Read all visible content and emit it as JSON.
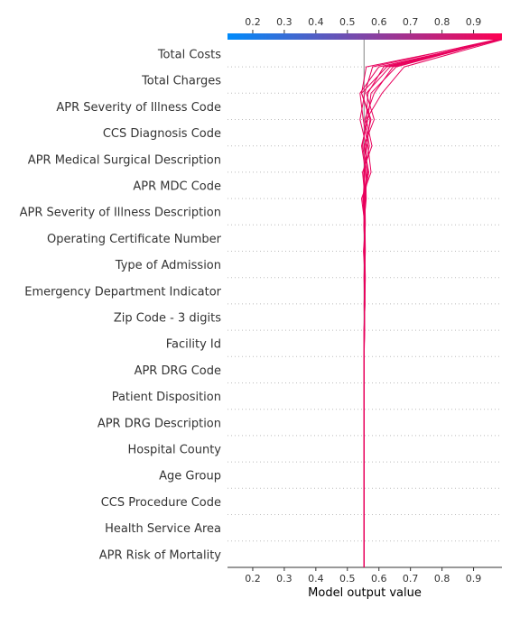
{
  "chart_data": {
    "type": "line",
    "title": "",
    "xlabel": "Model output value",
    "ylabel": "",
    "xlim": [
      0.12,
      0.99
    ],
    "x_ticks": [
      "0.2",
      "0.3",
      "0.4",
      "0.5",
      "0.6",
      "0.7",
      "0.8",
      "0.9"
    ],
    "base_value": 0.553,
    "colorbar": {
      "from": "#008bfb",
      "to": "#ff0052"
    },
    "line_color": "#e8005c",
    "grid": "dotted horizontal",
    "features": [
      "Total Costs",
      "Total Charges",
      "APR Severity of Illness Code",
      "CCS Diagnosis Code",
      "APR Medical Surgical Description",
      "APR MDC Code",
      "APR Severity of Illness Description",
      "Operating Certificate Number",
      "Type of Admission",
      "Emergency Department Indicator",
      "Zip Code - 3 digits",
      "Facility Id",
      "APR DRG Code",
      "Patient Disposition",
      "APR DRG Description",
      "Hospital County",
      "Age Group",
      "CCS Procedure Code",
      "Health Service Area",
      "APR Risk of Mortality"
    ],
    "series": [
      {
        "values": [
          0.985,
          0.625,
          0.545,
          0.572,
          0.562,
          0.552,
          0.555,
          0.553,
          0.555,
          0.557,
          0.555,
          0.554,
          0.553,
          0.553,
          0.553,
          0.553,
          0.553,
          0.553,
          0.553,
          0.553,
          0.553
        ]
      },
      {
        "values": [
          0.975,
          0.635,
          0.56,
          0.585,
          0.552,
          0.568,
          0.553,
          0.556,
          0.554,
          0.556,
          0.556,
          0.553,
          0.553,
          0.553,
          0.553,
          0.553,
          0.553,
          0.553,
          0.553,
          0.553,
          0.553
        ]
      },
      {
        "values": [
          0.98,
          0.655,
          0.575,
          0.565,
          0.545,
          0.558,
          0.56,
          0.552,
          0.556,
          0.553,
          0.554,
          0.555,
          0.553,
          0.553,
          0.553,
          0.553,
          0.553,
          0.553,
          0.553,
          0.553,
          0.553
        ]
      },
      {
        "values": [
          0.99,
          0.68,
          0.61,
          0.56,
          0.578,
          0.548,
          0.556,
          0.557,
          0.551,
          0.556,
          0.555,
          0.553,
          0.553,
          0.553,
          0.553,
          0.553,
          0.553,
          0.553,
          0.553,
          0.553,
          0.553
        ]
      },
      {
        "values": [
          0.988,
          0.6,
          0.54,
          0.55,
          0.565,
          0.575,
          0.545,
          0.556,
          0.557,
          0.554,
          0.555,
          0.554,
          0.553,
          0.553,
          0.553,
          0.553,
          0.553,
          0.553,
          0.553,
          0.553,
          0.553
        ]
      },
      {
        "values": [
          0.97,
          0.58,
          0.555,
          0.54,
          0.56,
          0.555,
          0.55,
          0.553,
          0.555,
          0.556,
          0.553,
          0.554,
          0.553,
          0.553,
          0.553,
          0.553,
          0.553,
          0.553,
          0.553,
          0.553,
          0.553
        ]
      },
      {
        "values": [
          0.982,
          0.615,
          0.565,
          0.56,
          0.548,
          0.562,
          0.552,
          0.555,
          0.553,
          0.555,
          0.554,
          0.553,
          0.553,
          0.553,
          0.553,
          0.553,
          0.553,
          0.553,
          0.553,
          0.553,
          0.553
        ]
      },
      {
        "values": [
          0.978,
          0.645,
          0.585,
          0.555,
          0.57,
          0.552,
          0.558,
          0.554,
          0.556,
          0.555,
          0.555,
          0.554,
          0.553,
          0.553,
          0.553,
          0.553,
          0.553,
          0.553,
          0.553,
          0.553,
          0.553
        ]
      },
      {
        "values": [
          0.986,
          0.56,
          0.545,
          0.575,
          0.555,
          0.565,
          0.549,
          0.556,
          0.554,
          0.553,
          0.556,
          0.553,
          0.553,
          0.553,
          0.553,
          0.553,
          0.553,
          0.553,
          0.553,
          0.553,
          0.553
        ]
      }
    ]
  }
}
